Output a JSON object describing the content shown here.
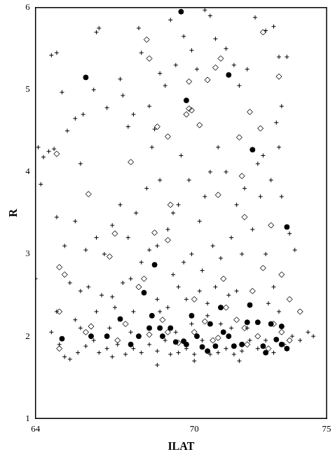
{
  "chart_data": {
    "type": "scatter",
    "x_label": "ILAT",
    "y_label": "R",
    "xlim": [
      64,
      75
    ],
    "xticks": [
      64,
      70,
      75
    ],
    "ylim": [
      1,
      6
    ],
    "yticks": [
      1,
      2,
      3,
      4,
      5,
      6
    ],
    "grid": false,
    "series": [
      {
        "color": "#000000",
        "marker": "plus",
        "x": [
          64.1,
          64.2,
          64.0,
          64.6,
          64.8,
          64.5,
          64.7,
          64.3,
          65.0,
          65.2,
          65.5,
          65.7,
          65.8,
          66.2,
          66.3,
          66.4,
          66.7,
          67.2,
          67.3,
          67.5,
          67.7,
          67.9,
          68.0,
          68.3,
          68.5,
          68.7,
          68.9,
          69.1,
          69.3,
          69.6,
          69.9,
          70.1,
          70.4,
          70.6,
          70.8,
          71.2,
          71.5,
          71.7,
          72.0,
          72.3,
          72.7,
          73.0,
          73.2,
          73.3,
          73.5,
          73.2,
          73.1,
          72.6,
          72.4,
          71.9,
          71.6,
          71.2,
          70.9,
          70.6,
          70.4,
          70.2,
          69.8,
          69.5,
          69.4,
          69.2,
          69.0,
          68.7,
          68.4,
          68.2,
          67.8,
          67.5,
          67.2,
          66.9,
          66.6,
          66.3,
          65.9,
          65.5,
          65.1,
          64.8,
          65.3,
          65.7,
          66.0,
          66.5,
          66.9,
          67.3,
          67.6,
          68.0,
          68.3,
          68.6,
          69.2,
          69.6,
          69.9,
          70.3,
          70.7,
          71.0,
          71.4,
          71.8,
          72.2,
          72.5,
          72.9,
          73.3,
          73.6,
          73.8,
          72.7,
          73.0,
          72.8,
          71.6,
          71.3,
          70.8,
          70.5,
          70.2,
          69.7,
          69.4,
          69.0,
          68.6,
          67.7,
          67.0,
          66.3,
          65.5,
          64.8,
          64.6,
          64.9,
          65.1,
          65.3,
          65.6,
          65.9,
          66.2,
          66.4,
          66.7,
          66.9,
          67.1,
          67.4,
          67.7,
          68.0,
          68.3,
          68.6,
          68.9,
          69.1,
          69.4,
          69.7,
          70.0,
          70.3,
          70.6,
          70.9,
          71.2,
          71.5,
          71.8,
          72.1,
          72.4,
          72.7,
          73.0,
          73.4,
          73.7,
          74.0,
          74.3,
          74.5,
          72.0,
          71.4,
          70.5,
          69.9,
          68.7,
          66.8,
          65.7,
          71.0,
          73.2,
          69.3,
          67.6,
          68.6,
          70.0,
          71.7
        ],
        "values": [
          4.3,
          3.85,
          2.7,
          5.42,
          5.45,
          4.25,
          4.28,
          4.18,
          4.97,
          4.5,
          4.65,
          4.1,
          4.7,
          5.0,
          5.7,
          5.75,
          4.78,
          5.13,
          4.93,
          4.55,
          4.7,
          5.75,
          5.45,
          4.8,
          4.52,
          5.2,
          5.05,
          5.85,
          5.3,
          5.65,
          5.48,
          5.25,
          5.97,
          5.9,
          5.62,
          5.5,
          5.3,
          5.05,
          5.25,
          5.88,
          5.72,
          5.77,
          5.4,
          4.8,
          5.4,
          4.3,
          4.6,
          4.2,
          4.1,
          3.8,
          3.6,
          4.0,
          4.3,
          4.0,
          3.7,
          3.4,
          3.9,
          4.2,
          3.6,
          3.5,
          3.3,
          3.9,
          4.3,
          3.8,
          3.5,
          3.2,
          3.6,
          3.35,
          3.0,
          3.2,
          3.05,
          3.4,
          3.1,
          3.45,
          2.65,
          2.55,
          2.6,
          2.5,
          2.48,
          2.65,
          2.7,
          2.9,
          3.05,
          3.1,
          2.75,
          2.9,
          3.0,
          2.8,
          3.1,
          2.95,
          3.2,
          3.0,
          3.3,
          3.7,
          3.9,
          3.7,
          3.25,
          3.05,
          3.0,
          2.6,
          2.4,
          2.55,
          2.5,
          2.6,
          2.4,
          2.55,
          2.45,
          2.6,
          2.35,
          2.45,
          2.3,
          2.35,
          2.3,
          2.2,
          2.3,
          2.05,
          1.9,
          1.75,
          1.72,
          1.8,
          1.88,
          1.95,
          1.8,
          1.85,
          1.75,
          1.9,
          1.78,
          1.85,
          1.8,
          1.9,
          1.82,
          1.95,
          1.78,
          1.8,
          1.85,
          1.78,
          1.95,
          1.78,
          1.8,
          1.85,
          1.78,
          1.82,
          1.95,
          1.85,
          1.95,
          1.8,
          1.9,
          2.0,
          1.95,
          2.05,
          2.0,
          2.1,
          2.1,
          2.25,
          2.15,
          2.3,
          2.1,
          2.1,
          2.15,
          2.3,
          2.05,
          2.05,
          1.65,
          1.7,
          1.7
        ]
      },
      {
        "color": "#000000",
        "marker": "open_diamond",
        "x": [
          64.8,
          67.6,
          68.3,
          68.2,
          68.6,
          69.0,
          69.7,
          69.8,
          69.9,
          70.2,
          70.5,
          70.8,
          71.0,
          69.8,
          72.1,
          72.5,
          73.2,
          72.6,
          71.8,
          71.7,
          70.9,
          69.1,
          68.5,
          67.0,
          66.0,
          69.0,
          71.9,
          72.9,
          72.6,
          73.3,
          64.9,
          65.1,
          66.8,
          67.9,
          68.1,
          72.2,
          73.6,
          74.0,
          64.9,
          64.9,
          65.9,
          66.1,
          67.1,
          67.4,
          68.3,
          68.8,
          69.0,
          69.4,
          70.0,
          70.4,
          70.7,
          70.9,
          71.2,
          71.6,
          71.9,
          72.0,
          72.4,
          72.8,
          73.0,
          73.3,
          73.6,
          71.1,
          70.0
        ],
        "values": [
          4.22,
          4.12,
          5.38,
          5.61,
          4.55,
          4.43,
          4.7,
          4.77,
          4.75,
          4.57,
          5.12,
          5.27,
          5.38,
          5.1,
          4.73,
          4.53,
          5.16,
          5.7,
          3.95,
          4.42,
          3.72,
          3.6,
          3.26,
          3.25,
          3.73,
          3.17,
          3.45,
          3.35,
          2.83,
          2.75,
          2.84,
          2.75,
          2.97,
          2.6,
          2.7,
          2.55,
          2.45,
          2.3,
          2.3,
          1.85,
          2.05,
          2.12,
          1.95,
          2.15,
          2.02,
          2.2,
          2.05,
          1.92,
          2.05,
          2.18,
          1.95,
          1.98,
          2.35,
          2.2,
          2.1,
          1.9,
          2.0,
          1.85,
          2.15,
          2.05,
          1.95,
          2.7,
          2.45
        ]
      },
      {
        "color": "#000000",
        "marker": "filled_circle",
        "x": [
          65.9,
          69.5,
          69.7,
          71.3,
          72.2,
          73.5,
          68.5,
          67.2,
          68.1,
          65.0,
          66.1,
          66.7,
          67.6,
          67.9,
          68.3,
          68.4,
          68.7,
          68.8,
          69.1,
          69.3,
          69.6,
          69.7,
          70.1,
          70.3,
          70.5,
          70.8,
          71.1,
          71.3,
          71.5,
          71.8,
          72.0,
          72.1,
          72.4,
          72.6,
          72.7,
          72.9,
          73.1,
          73.3,
          73.5,
          71.0,
          69.9,
          70.6,
          73.3
        ],
        "values": [
          5.15,
          5.95,
          4.87,
          5.18,
          4.27,
          3.33,
          2.87,
          2.21,
          2.53,
          1.97,
          2.0,
          2.0,
          1.9,
          2.0,
          2.1,
          2.25,
          2.1,
          2.0,
          2.1,
          1.93,
          1.94,
          1.9,
          2.0,
          1.87,
          1.82,
          1.88,
          2.05,
          2.0,
          1.88,
          1.9,
          2.17,
          2.38,
          2.17,
          1.88,
          1.8,
          2.15,
          1.96,
          2.12,
          1.85,
          2.35,
          2.25,
          2.15,
          1.9
        ]
      }
    ]
  }
}
